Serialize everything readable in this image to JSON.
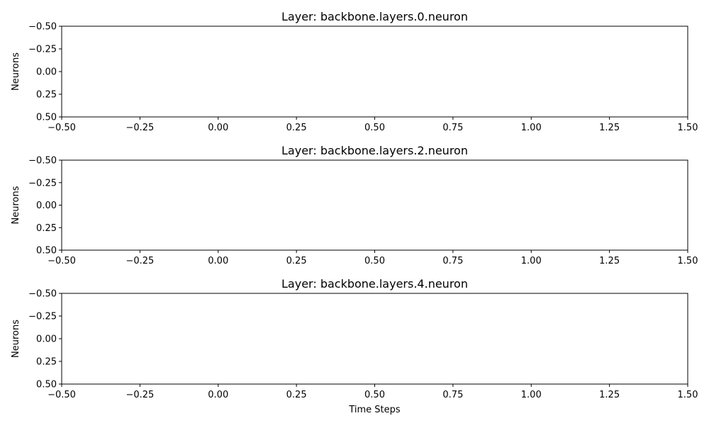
{
  "figure": {
    "background": "#ffffff",
    "axis_color": "#000000"
  },
  "chart_data": [
    {
      "type": "heatmap",
      "title": "Layer: backbone.layers.0.neuron",
      "xlabel": "",
      "ylabel": "Neurons",
      "xlim": [
        -0.5,
        1.5
      ],
      "ylim": [
        0.5,
        -0.5
      ],
      "y_inverted": true,
      "xticks": [
        -0.5,
        -0.25,
        0.0,
        0.25,
        0.5,
        0.75,
        1.0,
        1.25,
        1.5
      ],
      "xtick_labels": [
        "−0.50",
        "−0.25",
        "0.00",
        "0.25",
        "0.50",
        "0.75",
        "1.00",
        "1.25",
        "1.50"
      ],
      "yticks": [
        -0.5,
        -0.25,
        0.0,
        0.25,
        0.5
      ],
      "ytick_labels": [
        "−0.50",
        "−0.25",
        "0.00",
        "0.25",
        "0.50"
      ],
      "grid": false,
      "values": []
    },
    {
      "type": "heatmap",
      "title": "Layer: backbone.layers.2.neuron",
      "xlabel": "",
      "ylabel": "Neurons",
      "xlim": [
        -0.5,
        1.5
      ],
      "ylim": [
        0.5,
        -0.5
      ],
      "y_inverted": true,
      "xticks": [
        -0.5,
        -0.25,
        0.0,
        0.25,
        0.5,
        0.75,
        1.0,
        1.25,
        1.5
      ],
      "xtick_labels": [
        "−0.50",
        "−0.25",
        "0.00",
        "0.25",
        "0.50",
        "0.75",
        "1.00",
        "1.25",
        "1.50"
      ],
      "yticks": [
        -0.5,
        -0.25,
        0.0,
        0.25,
        0.5
      ],
      "ytick_labels": [
        "−0.50",
        "−0.25",
        "0.00",
        "0.25",
        "0.50"
      ],
      "grid": false,
      "values": []
    },
    {
      "type": "heatmap",
      "title": "Layer: backbone.layers.4.neuron",
      "xlabel": "Time Steps",
      "ylabel": "Neurons",
      "xlim": [
        -0.5,
        1.5
      ],
      "ylim": [
        0.5,
        -0.5
      ],
      "y_inverted": true,
      "xticks": [
        -0.5,
        -0.25,
        0.0,
        0.25,
        0.5,
        0.75,
        1.0,
        1.25,
        1.5
      ],
      "xtick_labels": [
        "−0.50",
        "−0.25",
        "0.00",
        "0.25",
        "0.50",
        "0.75",
        "1.00",
        "1.25",
        "1.50"
      ],
      "yticks": [
        -0.5,
        -0.25,
        0.0,
        0.25,
        0.5
      ],
      "ytick_labels": [
        "−0.50",
        "−0.25",
        "0.00",
        "0.25",
        "0.50"
      ],
      "grid": false,
      "values": []
    }
  ]
}
